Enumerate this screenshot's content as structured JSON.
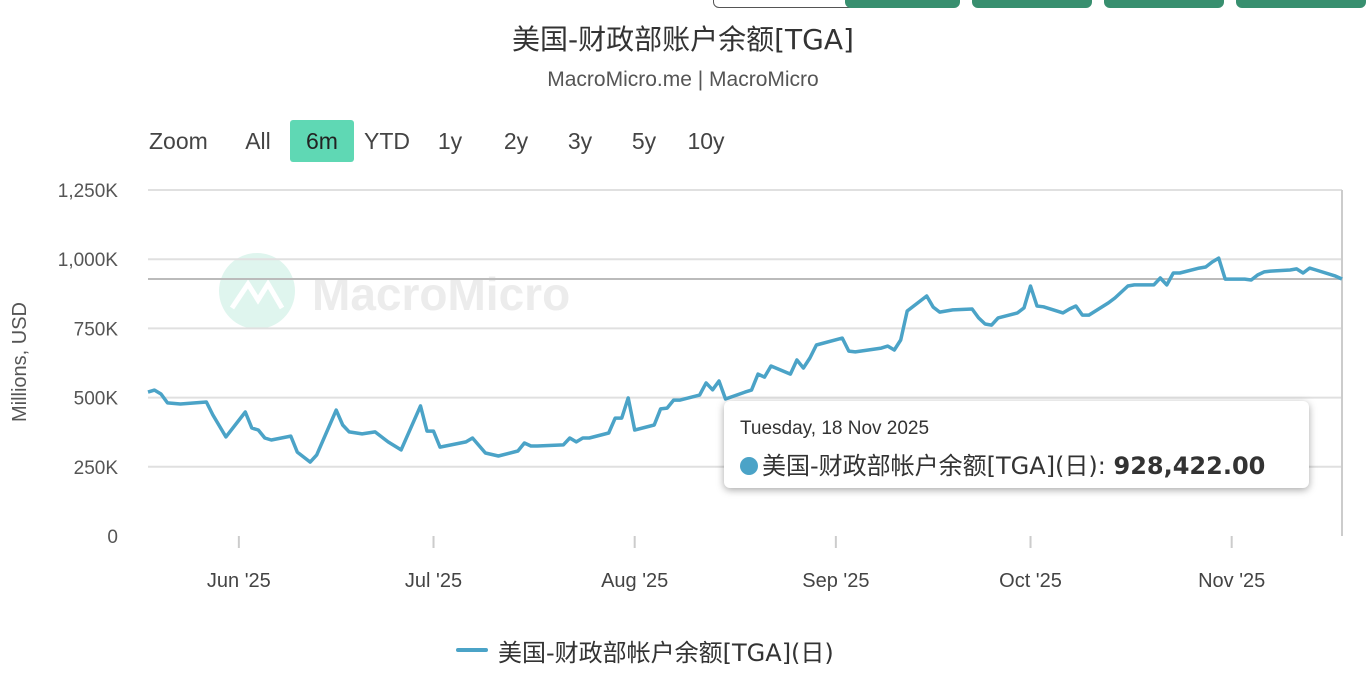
{
  "header": {
    "title": "美国-财政部账户余额[TGA]",
    "subtitle": "MacroMicro.me | MacroMicro"
  },
  "range_selector": {
    "label": "Zoom",
    "buttons": [
      "All",
      "6m",
      "YTD",
      "1y",
      "2y",
      "3y",
      "5y",
      "10y"
    ],
    "active": "6m"
  },
  "watermark": "MacroMicro",
  "tooltip": {
    "date": "Tuesday, 18 Nov 2025",
    "series": "美国-财政部帐户余额[TGA](日)",
    "value": "928,422.00"
  },
  "colors": {
    "line": "#4ba3c7",
    "active_range": "#5fd8b4",
    "top_buttons": "#388f6f",
    "watermark_logo": "#dff5ee"
  },
  "chart_data": {
    "type": "line",
    "title": "美国-财政部账户余额[TGA]",
    "ylabel": "Millions, USD",
    "ylim": [
      0,
      1250000
    ],
    "yticks": [
      0,
      250000,
      500000,
      750000,
      1000000,
      1250000
    ],
    "ytick_labels": [
      "0",
      "250K",
      "500K",
      "750K",
      "1,000K",
      "1,250K"
    ],
    "xlim": [
      "2025-05-18",
      "2025-11-18"
    ],
    "xticks": [
      "2025-06-01",
      "2025-07-01",
      "2025-08-01",
      "2025-09-01",
      "2025-10-01",
      "2025-11-01"
    ],
    "xtick_labels": [
      "Jun '25",
      "Jul '25",
      "Aug '25",
      "Sep '25",
      "Oct '25",
      "Nov '25"
    ],
    "grid": true,
    "legend": "bottom",
    "series": [
      {
        "name": "美国-财政部帐户余额[TGA](日)",
        "points": [
          [
            "2025-05-18",
            520000
          ],
          [
            "2025-05-19",
            527000
          ],
          [
            "2025-05-20",
            513000
          ],
          [
            "2025-05-21",
            481000
          ],
          [
            "2025-05-23",
            477000
          ],
          [
            "2025-05-27",
            484000
          ],
          [
            "2025-05-28",
            437000
          ],
          [
            "2025-05-30",
            358000
          ],
          [
            "2025-06-02",
            448000
          ],
          [
            "2025-06-03",
            390000
          ],
          [
            "2025-06-04",
            383000
          ],
          [
            "2025-06-05",
            354000
          ],
          [
            "2025-06-06",
            347000
          ],
          [
            "2025-06-09",
            361000
          ],
          [
            "2025-06-10",
            303000
          ],
          [
            "2025-06-12",
            267000
          ],
          [
            "2025-06-13",
            293000
          ],
          [
            "2025-06-16",
            455000
          ],
          [
            "2025-06-17",
            401000
          ],
          [
            "2025-06-18",
            376000
          ],
          [
            "2025-06-20",
            369000
          ],
          [
            "2025-06-22",
            376000
          ],
          [
            "2025-06-24",
            340000
          ],
          [
            "2025-06-26",
            311000
          ],
          [
            "2025-06-29",
            470000
          ],
          [
            "2025-06-30",
            379000
          ],
          [
            "2025-07-01",
            379000
          ],
          [
            "2025-07-02",
            321000
          ],
          [
            "2025-07-06",
            340000
          ],
          [
            "2025-07-07",
            354000
          ],
          [
            "2025-07-09",
            300000
          ],
          [
            "2025-07-11",
            289000
          ],
          [
            "2025-07-14",
            307000
          ],
          [
            "2025-07-15",
            336000
          ],
          [
            "2025-07-16",
            325000
          ],
          [
            "2025-07-17",
            325000
          ],
          [
            "2025-07-21",
            329000
          ],
          [
            "2025-07-22",
            354000
          ],
          [
            "2025-07-23",
            340000
          ],
          [
            "2025-07-24",
            354000
          ],
          [
            "2025-07-25",
            354000
          ],
          [
            "2025-07-28",
            372000
          ],
          [
            "2025-07-29",
            426000
          ],
          [
            "2025-07-30",
            426000
          ],
          [
            "2025-07-31",
            499000
          ],
          [
            "2025-08-01",
            383000
          ],
          [
            "2025-08-04",
            401000
          ],
          [
            "2025-08-05",
            459000
          ],
          [
            "2025-08-06",
            462000
          ],
          [
            "2025-08-07",
            491000
          ],
          [
            "2025-08-08",
            491000
          ],
          [
            "2025-08-11",
            509000
          ],
          [
            "2025-08-12",
            553000
          ],
          [
            "2025-08-13",
            528000
          ],
          [
            "2025-08-14",
            560000
          ],
          [
            "2025-08-15",
            495000
          ],
          [
            "2025-08-18",
            520000
          ],
          [
            "2025-08-19",
            527000
          ],
          [
            "2025-08-20",
            585000
          ],
          [
            "2025-08-21",
            574000
          ],
          [
            "2025-08-22",
            614000
          ],
          [
            "2025-08-25",
            585000
          ],
          [
            "2025-08-26",
            636000
          ],
          [
            "2025-08-27",
            607000
          ],
          [
            "2025-08-28",
            643000
          ],
          [
            "2025-08-29",
            690000
          ],
          [
            "2025-09-02",
            715000
          ],
          [
            "2025-09-03",
            668000
          ],
          [
            "2025-09-04",
            665000
          ],
          [
            "2025-09-08",
            679000
          ],
          [
            "2025-09-09",
            686000
          ],
          [
            "2025-09-10",
            672000
          ],
          [
            "2025-09-11",
            708000
          ],
          [
            "2025-09-12",
            813000
          ],
          [
            "2025-09-15",
            867000
          ],
          [
            "2025-09-16",
            827000
          ],
          [
            "2025-09-17",
            809000
          ],
          [
            "2025-09-19",
            817000
          ],
          [
            "2025-09-22",
            820000
          ],
          [
            "2025-09-23",
            788000
          ],
          [
            "2025-09-24",
            766000
          ],
          [
            "2025-09-25",
            762000
          ],
          [
            "2025-09-26",
            788000
          ],
          [
            "2025-09-29",
            806000
          ],
          [
            "2025-09-30",
            824000
          ],
          [
            "2025-10-01",
            903000
          ],
          [
            "2025-10-02",
            831000
          ],
          [
            "2025-10-03",
            828000
          ],
          [
            "2025-10-06",
            806000
          ],
          [
            "2025-10-07",
            820000
          ],
          [
            "2025-10-08",
            831000
          ],
          [
            "2025-10-09",
            798000
          ],
          [
            "2025-10-10",
            798000
          ],
          [
            "2025-10-13",
            842000
          ],
          [
            "2025-10-14",
            860000
          ],
          [
            "2025-10-16",
            903000
          ],
          [
            "2025-10-17",
            907000
          ],
          [
            "2025-10-20",
            907000
          ],
          [
            "2025-10-21",
            932000
          ],
          [
            "2025-10-22",
            907000
          ],
          [
            "2025-10-23",
            950000
          ],
          [
            "2025-10-24",
            950000
          ],
          [
            "2025-10-27",
            968000
          ],
          [
            "2025-10-28",
            972000
          ],
          [
            "2025-10-29",
            990000
          ],
          [
            "2025-10-30",
            1004000
          ],
          [
            "2025-10-31",
            928000
          ],
          [
            "2025-11-03",
            928000
          ],
          [
            "2025-11-04",
            925000
          ],
          [
            "2025-11-05",
            943000
          ],
          [
            "2025-11-06",
            954000
          ],
          [
            "2025-11-07",
            957000
          ],
          [
            "2025-11-10",
            961000
          ],
          [
            "2025-11-11",
            965000
          ],
          [
            "2025-11-12",
            950000
          ],
          [
            "2025-11-13",
            968000
          ],
          [
            "2025-11-14",
            961000
          ],
          [
            "2025-11-17",
            939000
          ],
          [
            "2025-11-18",
            928422
          ]
        ]
      }
    ]
  }
}
